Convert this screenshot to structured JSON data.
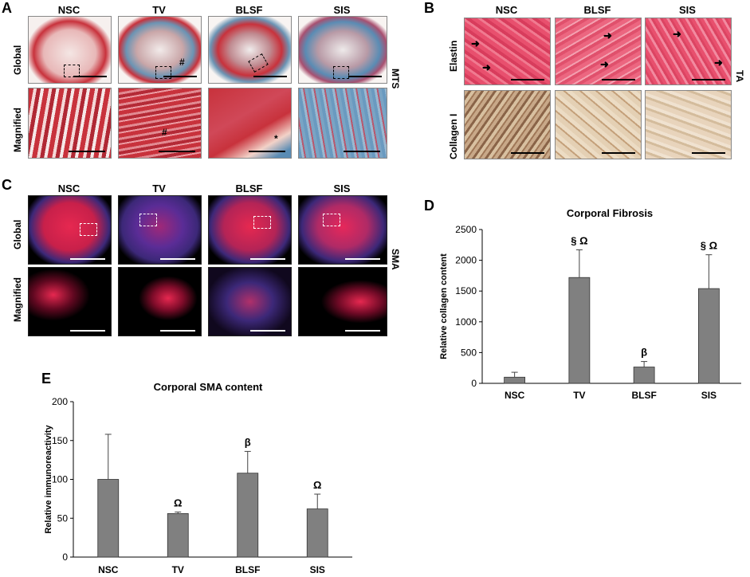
{
  "panels": {
    "A": {
      "letter": "A",
      "columns": [
        "NSC",
        "TV",
        "BLSF",
        "SIS"
      ],
      "rows": [
        "Global",
        "Magnified"
      ],
      "stain": "MTS",
      "marks": {
        "hash": "#",
        "star": "*"
      }
    },
    "B": {
      "letter": "B",
      "columns": [
        "NSC",
        "BLSF",
        "SIS"
      ],
      "rows": [
        "Elastin",
        "Collagen I"
      ],
      "stain": "TA"
    },
    "C": {
      "letter": "C",
      "columns": [
        "NSC",
        "TV",
        "BLSF",
        "SIS"
      ],
      "rows": [
        "Global",
        "Magnified"
      ],
      "stain": "SMA"
    },
    "D": {
      "letter": "D"
    },
    "E": {
      "letter": "E"
    }
  },
  "colors": {
    "bar": "#808080",
    "mts_red": "#c8323c",
    "mts_blue": "#5a8cb4",
    "ta_pink": "#e6506e",
    "col_brown": "#a07850",
    "if_red": "#e62850",
    "if_blue": "#3c2878"
  },
  "chart_data": [
    {
      "id": "D",
      "type": "bar",
      "title": "Corporal Fibrosis",
      "xlabel": "",
      "ylabel": "Relative collagen content",
      "categories": [
        "NSC",
        "TV",
        "BLSF",
        "SIS"
      ],
      "values": [
        100,
        1720,
        265,
        1540
      ],
      "errors": [
        80,
        450,
        90,
        550
      ],
      "annotations": [
        "",
        "§ Ω",
        "β",
        "§ Ω"
      ],
      "ylim": [
        0,
        2500
      ],
      "yticks": [
        "0",
        "500",
        "1000",
        "1500",
        "2000",
        "2500"
      ]
    },
    {
      "id": "E",
      "type": "bar",
      "title": "Corporal SMA content",
      "xlabel": "",
      "ylabel": "Relative immunoreactivity",
      "categories": [
        "NSC",
        "TV",
        "BLSF",
        "SIS"
      ],
      "values": [
        100,
        56,
        108,
        62
      ],
      "errors": [
        58,
        2,
        28,
        19
      ],
      "annotations": [
        "",
        "Ω",
        "β",
        "Ω"
      ],
      "ylim": [
        0,
        200
      ],
      "yticks": [
        "0",
        "50",
        "100",
        "150",
        "200"
      ]
    }
  ]
}
